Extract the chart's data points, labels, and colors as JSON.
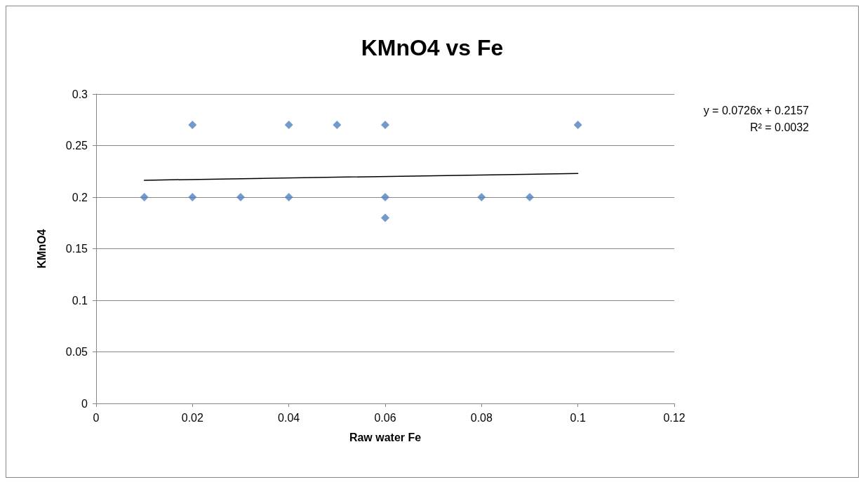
{
  "chart_data": {
    "type": "scatter",
    "title": "KMnO4 vs Fe",
    "xlabel": "Raw water Fe",
    "ylabel": "KMnO4",
    "xlim": [
      0,
      0.12
    ],
    "xticks": [
      0,
      0.02,
      0.04,
      0.06,
      0.08,
      0.1,
      0.12
    ],
    "ylim": [
      0,
      0.3
    ],
    "yticks": [
      0,
      0.05,
      0.1,
      0.15,
      0.2,
      0.25,
      0.3
    ],
    "grid": "y",
    "marker": "diamond",
    "annotations": [
      "y = 0.0726x + 0.2157",
      "R² = 0.0032"
    ],
    "series": [
      {
        "color": "#4f81bd",
        "x": [
          0.01,
          0.02,
          0.02,
          0.03,
          0.04,
          0.04,
          0.05,
          0.06,
          0.06,
          0.06,
          0.08,
          0.09,
          0.1
        ],
        "values": [
          0.2,
          0.27,
          0.2,
          0.2,
          0.27,
          0.2,
          0.27,
          0.27,
          0.2,
          0.18,
          0.2,
          0.2,
          0.27
        ]
      },
      {
        "type": "line",
        "color": "#000000",
        "marker": "none",
        "line_style": "solid",
        "x": [
          0.01,
          0.1
        ],
        "values": [
          0.2164,
          0.223
        ]
      }
    ]
  }
}
